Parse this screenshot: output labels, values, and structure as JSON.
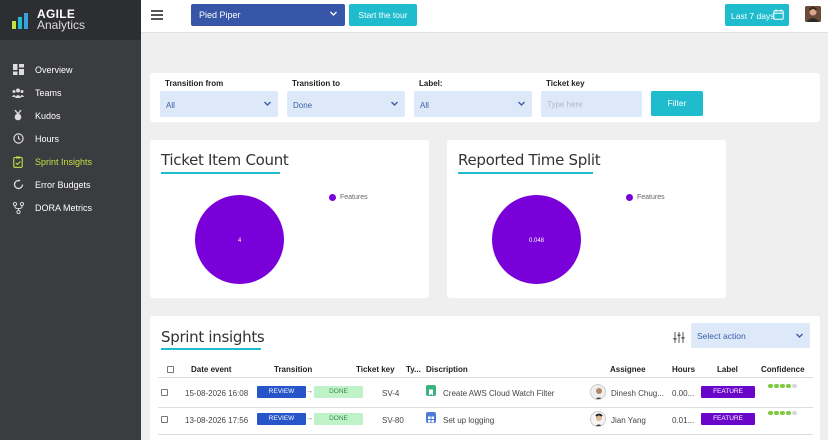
{
  "brand": {
    "line1": "AGILE",
    "line2": "Analytics"
  },
  "sidebar": {
    "items": [
      {
        "label": "Overview",
        "icon": "dashboard-icon",
        "active": false
      },
      {
        "label": "Teams",
        "icon": "team-icon",
        "active": false
      },
      {
        "label": "Kudos",
        "icon": "medal-icon",
        "active": false
      },
      {
        "label": "Hours",
        "icon": "clock-icon",
        "active": false
      },
      {
        "label": "Sprint Insights",
        "icon": "clipboard-icon",
        "active": true
      },
      {
        "label": "Error Budgets",
        "icon": "gauge-icon",
        "active": false
      },
      {
        "label": "DORA Metrics",
        "icon": "branch-icon",
        "active": false
      }
    ]
  },
  "topbar": {
    "project": "Pied Piper",
    "tour_label": "Start the tour",
    "date_range": "Last 7 days"
  },
  "filters": {
    "transition_from": {
      "label": "Transition from",
      "value": "All"
    },
    "transition_to": {
      "label": "Transition to",
      "value": "Done"
    },
    "label": {
      "label": "Label:",
      "value": "All"
    },
    "ticket_key": {
      "label": "Ticket key",
      "placeholder": "Type here"
    },
    "filter_button": "Filter"
  },
  "chart_data": [
    {
      "type": "pie",
      "title": "Ticket Item Count",
      "categories": [
        "Features"
      ],
      "values": [
        4
      ],
      "data_labels": [
        "4"
      ],
      "colors": [
        "#7a00d9"
      ],
      "legend": "right"
    },
    {
      "type": "pie",
      "title": "Reported Time Split",
      "categories": [
        "Features"
      ],
      "values": [
        0.048
      ],
      "data_labels": [
        "0.048"
      ],
      "colors": [
        "#7a00d9"
      ],
      "legend": "right"
    }
  ],
  "insights": {
    "title": "Sprint insights",
    "action_placeholder": "Select action",
    "columns": [
      "Date event",
      "Transition",
      "Ticket key",
      "Ty...",
      "Discription",
      "Assignee",
      "Hours",
      "Label",
      "Confidence"
    ],
    "rows": [
      {
        "date": "15-08-2026 16:08",
        "from": "REVIEW",
        "to": "DONE",
        "key": "SV-4",
        "type": "story-icon",
        "description": "Create AWS Cloud Watch Filter",
        "assignee": "Dinesh Chug...",
        "hours": "0.00...",
        "label": "FEATURE",
        "confidence": 4
      },
      {
        "date": "13-08-2026 17:56",
        "from": "REVIEW",
        "to": "DONE",
        "key": "SV-80",
        "type": "task-icon",
        "description": "Set up logging",
        "assignee": "Jian Yang",
        "hours": "0.01...",
        "label": "FEATURE",
        "confidence": 4
      }
    ]
  },
  "colors": {
    "accent": "#1fbccd",
    "project": "#3856a8",
    "pie": "#7a00d9",
    "sidebar": "#3b3c3f",
    "active": "#c6e046"
  }
}
